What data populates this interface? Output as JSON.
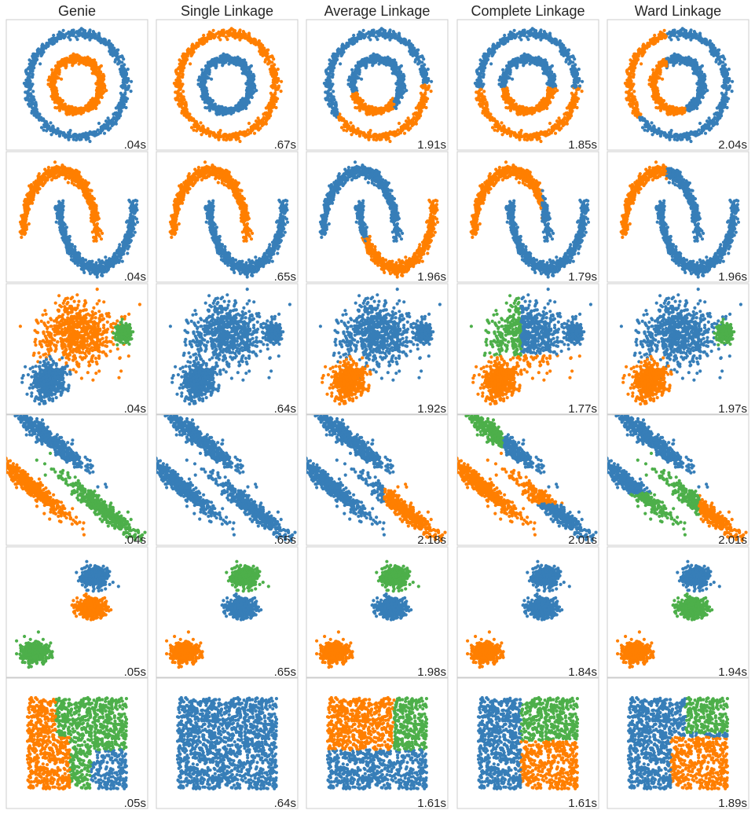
{
  "chart_data": {
    "type": "scatter",
    "colors": {
      "blue": "#377eb8",
      "orange": "#ff7f00",
      "green": "#4daf4a"
    },
    "columns": [
      "Genie",
      "Single Linkage",
      "Average Linkage",
      "Complete Linkage",
      "Ward Linkage"
    ],
    "datasets": [
      "noisy_circles",
      "noisy_moons",
      "varied",
      "aniso",
      "blobs",
      "no_structure"
    ],
    "grid": false,
    "axes_ticks": false,
    "timings": [
      [
        ".04s",
        ".67s",
        "1.91s",
        "1.85s",
        "2.04s"
      ],
      [
        ".04s",
        ".65s",
        "1.96s",
        "1.79s",
        "1.96s"
      ],
      [
        ".04s",
        ".64s",
        "1.92s",
        "1.77s",
        "1.97s"
      ],
      [
        ".04s",
        ".65s",
        "2.18s",
        "2.01s",
        "2.01s"
      ],
      [
        ".05s",
        ".65s",
        "1.98s",
        "1.84s",
        "1.94s"
      ],
      [
        ".05s",
        ".64s",
        "1.61s",
        "1.61s",
        "1.89s"
      ]
    ]
  }
}
